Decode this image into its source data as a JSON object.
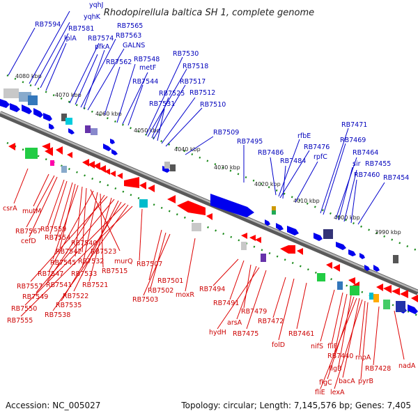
{
  "title": "Rhodopirellula baltica SH 1, complete genome",
  "footer": {
    "accession": "Accession: NC_005027",
    "summary": "Topology: circular; Length: 7,145,576 bp; Genes: 7,405"
  },
  "kbp_labels": [
    "4080 kbp",
    "4070 kbp",
    "4060 kbp",
    "4050 kbp",
    "4040 kbp",
    "4030 kbp",
    "4020 kbp",
    "4010 kbp",
    "4000 kbp",
    "3990 kbp"
  ],
  "top_labels": [
    "yqhJ",
    "yqhK",
    "RB7594",
    "RB7581",
    "lplA",
    "RB7565",
    "RB7574",
    "RB7563",
    "pfkA",
    "GALNS",
    "RB7562",
    "RB7548",
    "metF",
    "RB7544",
    "RB7530",
    "RB7518",
    "RB7525",
    "RB7517",
    "RB7531",
    "RB7512",
    "RB7510",
    "RB7509",
    "RB7495",
    "rfbE",
    "RB7486",
    "RB7476",
    "RB7484",
    "rpfC",
    "RB7471",
    "RB7469",
    "RB7464",
    "sir",
    "RB7455",
    "RB7460",
    "RB7454"
  ],
  "bottom_labels": [
    "csrA",
    "mutM",
    "RB7567",
    "cefD",
    "RB7559",
    "RB7554",
    "RB7540",
    "RB7542",
    "RB7545",
    "RB7532",
    "RB7523",
    "murQ",
    "RB7547",
    "RB7533",
    "RB7515",
    "RB7507",
    "RB7541",
    "RB7557",
    "RB7521",
    "RB7549",
    "RB7522",
    "RB7535",
    "RB7550",
    "RB7538",
    "RB7555",
    "RB7501",
    "RB7502",
    "RB7503",
    "moxR",
    "RB7494",
    "RB7491",
    "RB7479",
    "arsA",
    "hydH",
    "RB7475",
    "RB7472",
    "RB7461",
    "folD",
    "nifS",
    "fliF",
    "RB7440",
    "flgB",
    "rnpA",
    "nadA",
    "RB7428",
    "flgC",
    "bacA",
    "pyrB",
    "fliE",
    "lexA"
  ],
  "colors": {
    "forward": "#0000ee",
    "reverse": "#ff0000",
    "backbone": "#888888",
    "tick": "#1a8a1a",
    "top_label": "#0000bb",
    "bottom_label": "#cc0000"
  }
}
